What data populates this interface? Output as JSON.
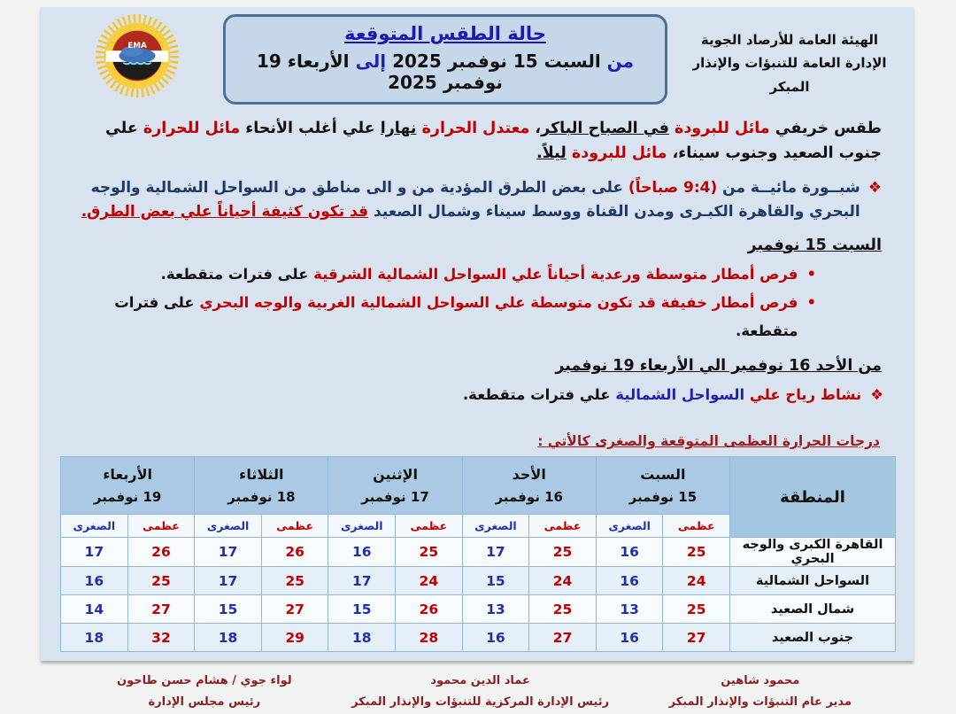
{
  "colors": {
    "accent_red": "#C00000",
    "navy_text": "#1F3864",
    "title_blue": "#1A1AAE",
    "max_temp_red": "#C00000",
    "min_temp_blue": "#2030A8",
    "table_header_blue": "#ABC9E4",
    "footer_dark_red": "#8B1F1F",
    "doc_background": "#D9E3F0"
  },
  "agency": {
    "line1": "الهيئة العامة للأرصاد الجوية",
    "line2": "الإدارة العامة للتنبؤات والإنذار المبكر"
  },
  "logo": {
    "label": "EMA"
  },
  "title": {
    "heading": "حالة الطقس المتوقعة",
    "date_segments": [
      {
        "t": "من ",
        "c": "blue"
      },
      {
        "t": "السبت 15 نوفمبر 2025 ",
        "c": "black"
      },
      {
        "t": "إلى ",
        "c": "blue"
      },
      {
        "t": "الأربعاء 19 نوفمبر 2025",
        "c": "black"
      }
    ]
  },
  "intro": {
    "segments": [
      {
        "t": "طقس خريفي ",
        "c": "black"
      },
      {
        "t": "مائل للبرودة ",
        "c": "red"
      },
      {
        "t": "في الصباح الباكر",
        "c": "black",
        "u": true
      },
      {
        "t": "، ",
        "c": "black"
      },
      {
        "t": "معتدل الحرارة ",
        "c": "red"
      },
      {
        "t": "نهارا",
        "c": "black",
        "u": true
      },
      {
        "t": " علي أغلب الأنحاء ",
        "c": "black"
      },
      {
        "t": "مائل للحرارة ",
        "c": "red"
      },
      {
        "t": "علي جنوب الصعيد وجنوب سيناء، ",
        "c": "black"
      },
      {
        "t": "مائل للبرودة ",
        "c": "red"
      },
      {
        "t": "ليلاً.",
        "c": "black",
        "u": true
      }
    ]
  },
  "fog": {
    "marker": "❖",
    "segments": [
      {
        "t": "شبــورة مائيــة من ",
        "c": "navy"
      },
      {
        "t": "(9:4 صباحاً)",
        "c": "red"
      },
      {
        "t": " على بعض الطرق المؤدية من و الى مناطق من السواحل الشمالية والوجه البحري والقاهرة الكبـرى  ومدن القناة ووسط سيناء وشمال الصعيد ",
        "c": "navy"
      },
      {
        "t": "قد تكون كثيفة أحياناً علي بعض الطرق.",
        "c": "red",
        "u": true
      }
    ]
  },
  "saturday_section": {
    "heading": "السبت 15 نوفمبر",
    "bullets": [
      {
        "marker": "•",
        "indent": "deep",
        "segments": [
          {
            "t": "فرص أمطار متوسطة ورعدية أحياناً علي السواحل الشمالية الشرقية ",
            "c": "red"
          },
          {
            "t": "على فترات متقطعة.",
            "c": "black"
          }
        ]
      },
      {
        "marker": "•",
        "indent": "deep",
        "segments": [
          {
            "t": "فرص أمطار خفيفة قد تكون متوسطة علي السواحل الشمالية الغربية والوجه البحري ",
            "c": "red"
          },
          {
            "t": "على فترات متقطعة.",
            "c": "black"
          }
        ]
      }
    ]
  },
  "week_section": {
    "heading": "من الأحد 16 نوفمبر الي الأربعاء 19 نوفمبر",
    "bullets": [
      {
        "marker": "❖",
        "indent": "shallow",
        "segments": [
          {
            "t": "نشاط رياح علي ",
            "c": "red"
          },
          {
            "t": "السواحل الشمالية ",
            "c": "blue"
          },
          {
            "t": "علي فترات متقطعة.",
            "c": "black"
          }
        ]
      }
    ]
  },
  "temps_heading": "درجات الحرارة العظمى المتوقعة والصغرى كالأتي :",
  "table": {
    "region_header": "المنطقة",
    "max_label": "عظمى",
    "min_label": "الصغرى",
    "days": [
      {
        "name": "السبت",
        "date": "15 نوفمبر"
      },
      {
        "name": "الأحد",
        "date": "16 نوفمبر"
      },
      {
        "name": "الإثنين",
        "date": "17 نوفمبر"
      },
      {
        "name": "الثلاثاء",
        "date": "18 نوفمبر"
      },
      {
        "name": "الأربعاء",
        "date": "19 نوفمبر"
      }
    ],
    "rows": [
      {
        "region": "القاهرة الكبرى والوجه البحري",
        "temps": [
          {
            "max": 25,
            "min": 16
          },
          {
            "max": 25,
            "min": 17
          },
          {
            "max": 25,
            "min": 16
          },
          {
            "max": 26,
            "min": 17
          },
          {
            "max": 26,
            "min": 17
          }
        ]
      },
      {
        "region": "السواحل الشمالية",
        "temps": [
          {
            "max": 24,
            "min": 16
          },
          {
            "max": 24,
            "min": 15
          },
          {
            "max": 24,
            "min": 17
          },
          {
            "max": 25,
            "min": 17
          },
          {
            "max": 25,
            "min": 16
          }
        ]
      },
      {
        "region": "شمال الصعيد",
        "temps": [
          {
            "max": 25,
            "min": 13
          },
          {
            "max": 25,
            "min": 13
          },
          {
            "max": 26,
            "min": 15
          },
          {
            "max": 27,
            "min": 15
          },
          {
            "max": 27,
            "min": 14
          }
        ]
      },
      {
        "region": "جنوب الصعيد",
        "temps": [
          {
            "max": 27,
            "min": 16
          },
          {
            "max": 27,
            "min": 16
          },
          {
            "max": 28,
            "min": 18
          },
          {
            "max": 29,
            "min": 18
          },
          {
            "max": 32,
            "min": 18
          }
        ]
      }
    ]
  },
  "footer": {
    "signatures": [
      {
        "name": "محمود شاهين",
        "title": "مدير عام التنبؤات والإنذار المبكر"
      },
      {
        "name": "عماد الدين محمود",
        "title": "رئيس الإدارة المركزية للتنبؤات والإنذار المبكر"
      },
      {
        "name": "لواء جوي / هشام حسن طاحون",
        "title": "رئيس مجلس الإدارة"
      }
    ]
  }
}
